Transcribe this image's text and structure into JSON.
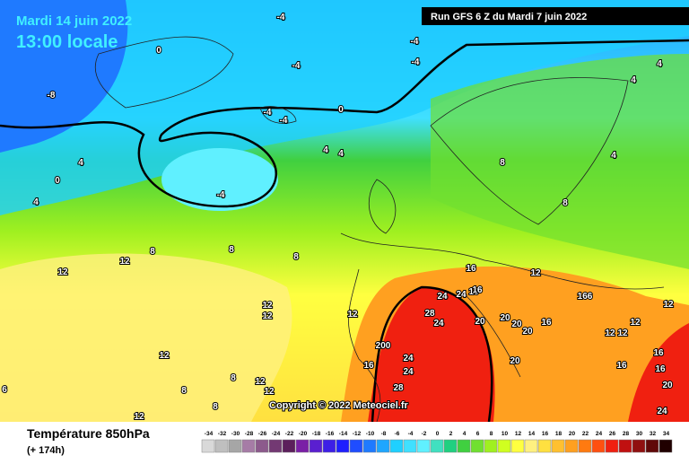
{
  "header": {
    "date": "Mardi 14 juin 2022",
    "time": "13:00 locale",
    "run": "Run GFS 6 Z du Mardi 7 juin 2022"
  },
  "copyright": "Copyright © 2022 Meteociel.fr",
  "legend": {
    "title": "Température 850hPa",
    "subtitle": "(+ 174h)",
    "ticks": [
      -34,
      -32,
      -30,
      -28,
      -26,
      -24,
      -22,
      -20,
      -18,
      -16,
      -14,
      -12,
      -10,
      -8,
      -6,
      -4,
      -2,
      0,
      2,
      4,
      6,
      8,
      10,
      12,
      14,
      16,
      18,
      20,
      22,
      24,
      26,
      28,
      30,
      32,
      34
    ],
    "colors": [
      "#d9d9d9",
      "#bfbfbf",
      "#a6a6a6",
      "#a67ca6",
      "#8c5a8c",
      "#733973",
      "#5c1f5c",
      "#7a1fa6",
      "#5a1fd0",
      "#3d1fe6",
      "#1f1fff",
      "#1f4dff",
      "#1f7aff",
      "#1fa6ff",
      "#1fd0ff",
      "#40e0ff",
      "#60f0ff",
      "#40e0c0",
      "#20d080",
      "#40d040",
      "#70e030",
      "#a0f020",
      "#d0ff20",
      "#ffff40",
      "#fff080",
      "#ffe040",
      "#ffc030",
      "#ffa020",
      "#ff7a10",
      "#ff5010",
      "#f02010",
      "#c01010",
      "#901010",
      "#600808",
      "#200000"
    ]
  },
  "map_labels": [
    -4,
    -4,
    -4,
    -4,
    0,
    -8,
    0,
    -4,
    -4,
    -4,
    4,
    4,
    4,
    0,
    4,
    4,
    4,
    4,
    8,
    8,
    8,
    8,
    8,
    12,
    12,
    16,
    12,
    16,
    24,
    24,
    16,
    166,
    12,
    12,
    12,
    28,
    24,
    20,
    20,
    20,
    20,
    16,
    12,
    12,
    12,
    12,
    200,
    12,
    16,
    24,
    24,
    20,
    16,
    16,
    16,
    12,
    12,
    8,
    8,
    6,
    28,
    20,
    24,
    12,
    8
  ]
}
